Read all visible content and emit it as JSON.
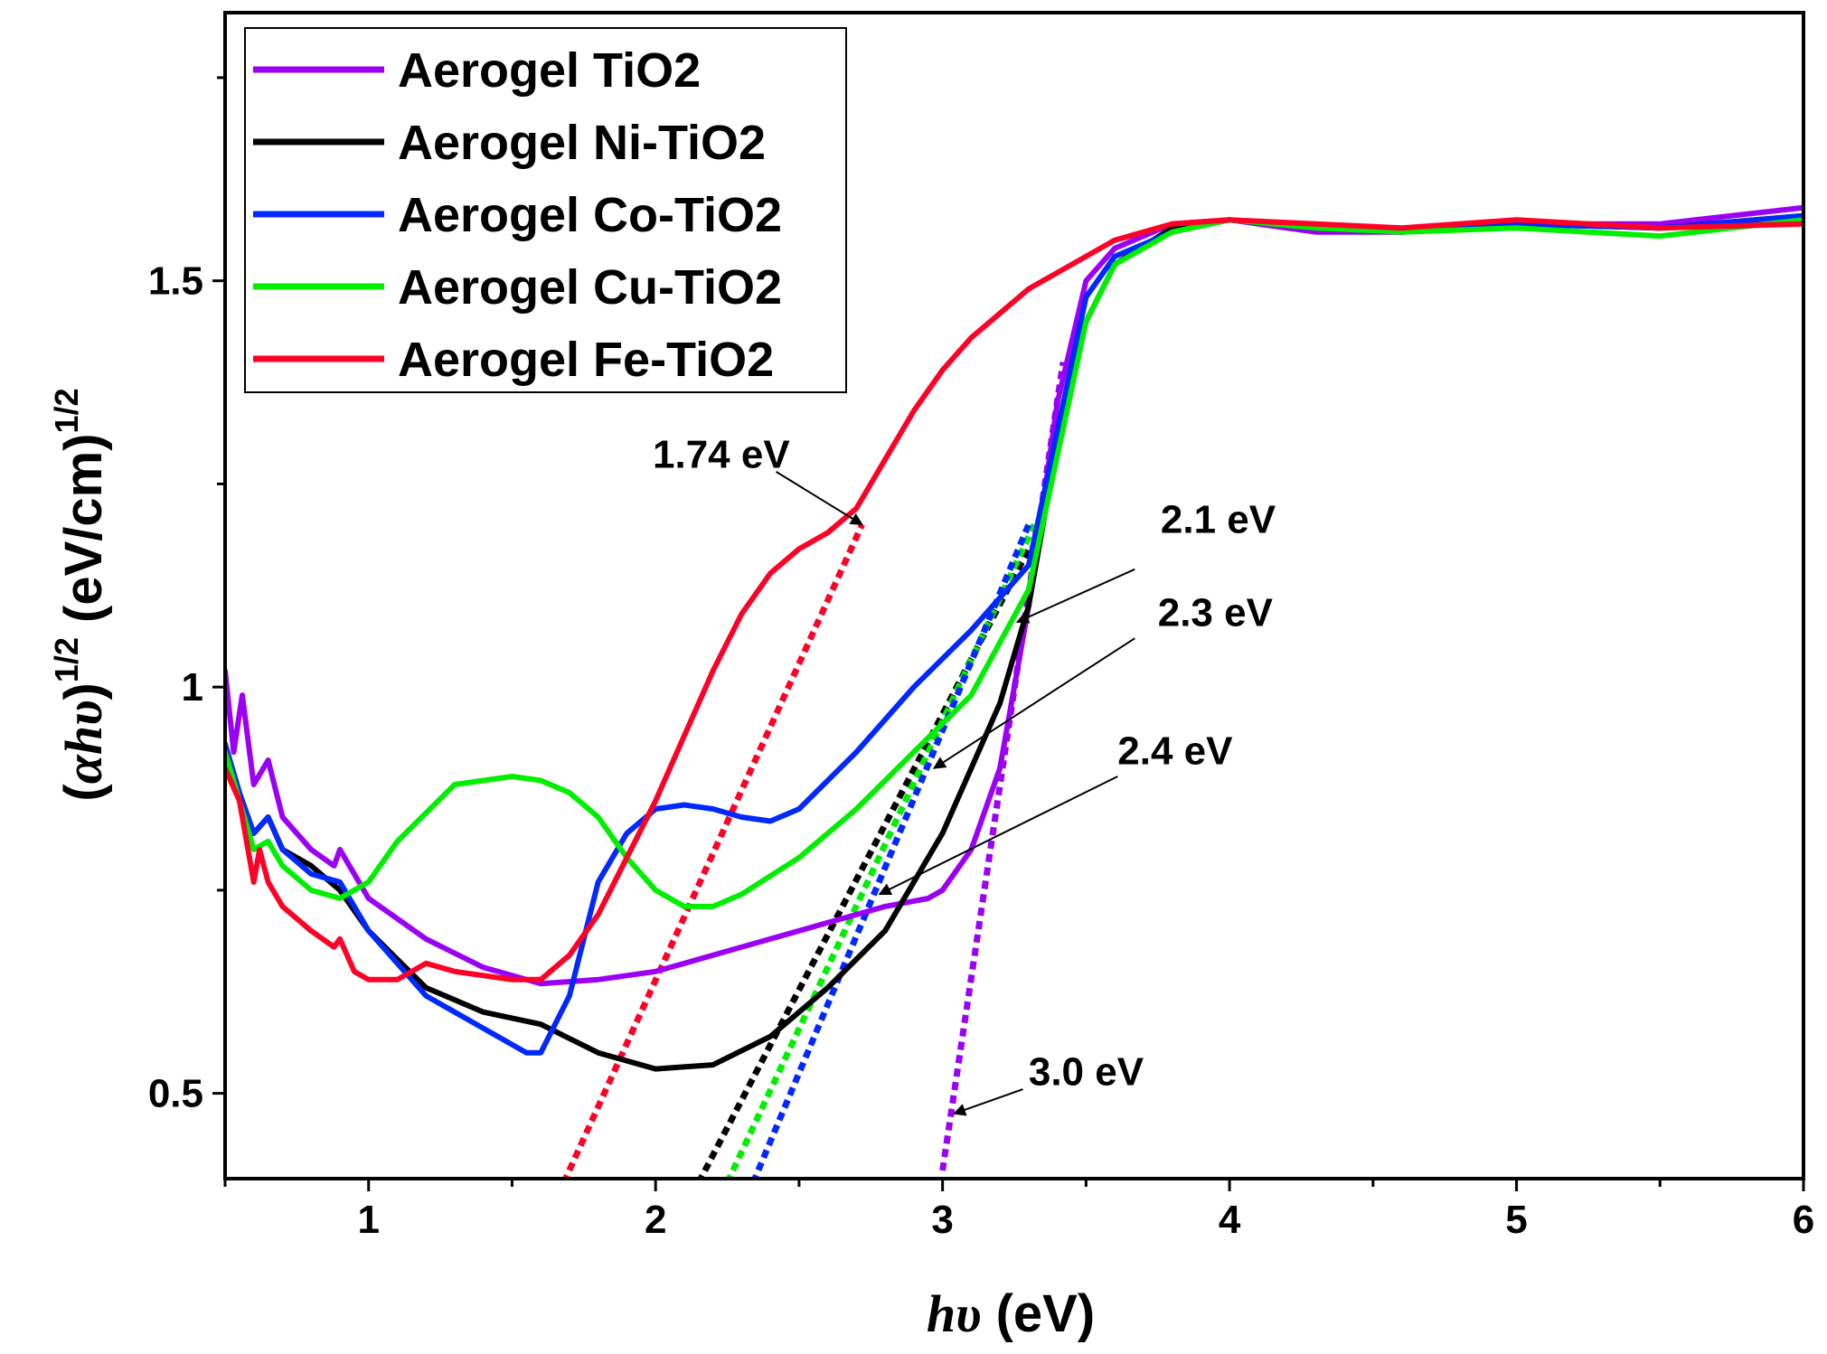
{
  "chart_data": {
    "type": "line",
    "title": "",
    "xlabel": {
      "italic": "hυ",
      "rest": " (eV)"
    },
    "ylabel": {
      "open": "(",
      "italic": "αhυ",
      "close": ")",
      "sup": "1/2",
      "unit": " (eV/cm)",
      "unit_sup": "1/2"
    },
    "xlim": [
      0.5,
      6
    ],
    "ylim": [
      0.395,
      1.83
    ],
    "x_ticks": [
      1,
      2,
      3,
      4,
      5,
      6
    ],
    "x_tick_labels": [
      "1",
      "2",
      "3",
      "4",
      "5",
      "6"
    ],
    "y_ticks": [
      0.5,
      1,
      1.5
    ],
    "y_tick_labels": [
      "0.5",
      "1",
      "1.5"
    ],
    "legend_position": "top-left",
    "series": [
      {
        "name": "Aerogel TiO2",
        "color": "#9b00f5",
        "x": [
          0.5,
          0.53,
          0.56,
          0.6,
          0.65,
          0.7,
          0.8,
          0.88,
          0.9,
          1.0,
          1.2,
          1.4,
          1.6,
          1.8,
          2.0,
          2.2,
          2.4,
          2.6,
          2.8,
          2.95,
          3.0,
          3.1,
          3.2,
          3.3,
          3.4,
          3.5,
          3.6,
          3.8,
          4.0,
          4.3,
          4.6,
          5.0,
          5.5,
          6.0
        ],
        "values": [
          1.02,
          0.92,
          0.99,
          0.88,
          0.91,
          0.84,
          0.8,
          0.78,
          0.8,
          0.74,
          0.69,
          0.655,
          0.635,
          0.64,
          0.65,
          0.67,
          0.69,
          0.71,
          0.73,
          0.74,
          0.75,
          0.8,
          0.9,
          1.1,
          1.35,
          1.5,
          1.54,
          1.57,
          1.575,
          1.56,
          1.56,
          1.57,
          1.57,
          1.59
        ]
      },
      {
        "name": "Aerogel Ni-TiO2",
        "color": "#000000",
        "x": [
          0.5,
          0.55,
          0.6,
          0.65,
          0.7,
          0.8,
          0.9,
          1.0,
          1.2,
          1.4,
          1.6,
          1.8,
          2.0,
          2.2,
          2.4,
          2.6,
          2.8,
          3.0,
          3.2,
          3.3,
          3.4,
          3.5,
          3.6,
          3.8,
          4.0,
          4.3,
          4.6,
          5.0,
          5.5,
          6.0
        ],
        "values": [
          0.93,
          0.86,
          0.82,
          0.84,
          0.8,
          0.78,
          0.75,
          0.7,
          0.63,
          0.6,
          0.585,
          0.55,
          0.53,
          0.535,
          0.57,
          0.63,
          0.7,
          0.82,
          0.98,
          1.1,
          1.3,
          1.45,
          1.52,
          1.565,
          1.575,
          1.565,
          1.56,
          1.57,
          1.565,
          1.58
        ]
      },
      {
        "name": "Aerogel Co-TiO2",
        "color": "#0028ff",
        "x": [
          0.5,
          0.55,
          0.6,
          0.65,
          0.7,
          0.8,
          0.9,
          1.0,
          1.2,
          1.4,
          1.55,
          1.6,
          1.7,
          1.8,
          1.9,
          2.0,
          2.1,
          2.2,
          2.3,
          2.4,
          2.5,
          2.7,
          2.9,
          3.1,
          3.3,
          3.5,
          3.6,
          3.8,
          4.0,
          4.3,
          4.6,
          5.0,
          5.5,
          6.0
        ],
        "values": [
          0.93,
          0.87,
          0.82,
          0.84,
          0.8,
          0.77,
          0.76,
          0.7,
          0.62,
          0.58,
          0.55,
          0.55,
          0.62,
          0.76,
          0.82,
          0.85,
          0.855,
          0.85,
          0.84,
          0.835,
          0.85,
          0.92,
          1.0,
          1.07,
          1.15,
          1.48,
          1.53,
          1.56,
          1.575,
          1.565,
          1.56,
          1.57,
          1.565,
          1.58
        ]
      },
      {
        "name": "Aerogel Cu-TiO2",
        "color": "#00ee00",
        "x": [
          0.5,
          0.55,
          0.6,
          0.65,
          0.7,
          0.8,
          0.9,
          1.0,
          1.1,
          1.3,
          1.5,
          1.6,
          1.7,
          1.8,
          1.9,
          2.0,
          2.1,
          2.2,
          2.3,
          2.5,
          2.7,
          2.9,
          3.1,
          3.3,
          3.5,
          3.6,
          3.8,
          4.0,
          4.3,
          4.6,
          5.0,
          5.5,
          6.0
        ],
        "values": [
          0.92,
          0.86,
          0.8,
          0.81,
          0.78,
          0.75,
          0.74,
          0.76,
          0.81,
          0.88,
          0.89,
          0.885,
          0.87,
          0.84,
          0.79,
          0.75,
          0.73,
          0.73,
          0.745,
          0.79,
          0.85,
          0.92,
          0.99,
          1.12,
          1.45,
          1.52,
          1.56,
          1.575,
          1.565,
          1.56,
          1.565,
          1.555,
          1.575
        ]
      },
      {
        "name": "Aerogel Fe-TiO2",
        "color": "#ff0026",
        "x": [
          0.5,
          0.55,
          0.6,
          0.62,
          0.65,
          0.7,
          0.8,
          0.88,
          0.9,
          0.95,
          1.0,
          1.1,
          1.2,
          1.3,
          1.4,
          1.5,
          1.6,
          1.7,
          1.8,
          1.9,
          2.0,
          2.1,
          2.2,
          2.3,
          2.4,
          2.5,
          2.6,
          2.7,
          2.8,
          2.9,
          3.0,
          3.1,
          3.2,
          3.3,
          3.4,
          3.5,
          3.6,
          3.8,
          4.0,
          4.3,
          4.6,
          5.0,
          5.5,
          6.0
        ],
        "values": [
          0.9,
          0.86,
          0.76,
          0.8,
          0.76,
          0.73,
          0.7,
          0.68,
          0.69,
          0.65,
          0.64,
          0.64,
          0.66,
          0.65,
          0.645,
          0.64,
          0.64,
          0.67,
          0.72,
          0.79,
          0.86,
          0.94,
          1.02,
          1.09,
          1.14,
          1.17,
          1.19,
          1.22,
          1.28,
          1.34,
          1.39,
          1.43,
          1.46,
          1.49,
          1.51,
          1.53,
          1.55,
          1.57,
          1.575,
          1.57,
          1.565,
          1.575,
          1.565,
          1.57
        ]
      }
    ],
    "fit_lines": [
      {
        "color": "#ff0026",
        "x": [
          1.68,
          2.72
        ],
        "values": [
          0.39,
          1.2
        ]
      },
      {
        "color": "#000000",
        "x": [
          2.15,
          3.3
        ],
        "values": [
          0.39,
          1.17
        ]
      },
      {
        "color": "#00ee00",
        "x": [
          2.25,
          3.32
        ],
        "values": [
          0.39,
          1.2
        ]
      },
      {
        "color": "#0028ff",
        "x": [
          2.34,
          3.3
        ],
        "values": [
          0.39,
          1.2
        ]
      },
      {
        "color": "#9b00f5",
        "x": [
          3.0,
          3.42
        ],
        "values": [
          0.405,
          1.4
        ]
      }
    ],
    "annotations": [
      {
        "label": "1.74 eV",
        "text_x": 1.99,
        "text_y": 1.27,
        "arrow_from": [
          2.42,
          1.265
        ],
        "arrow_to": [
          2.72,
          1.2
        ]
      },
      {
        "label": "2.1 eV",
        "text_x": 3.76,
        "text_y": 1.19,
        "arrow_from": [
          3.67,
          1.145
        ],
        "arrow_to": [
          3.26,
          1.08
        ]
      },
      {
        "label": "2.3 eV",
        "text_x": 3.75,
        "text_y": 1.075,
        "arrow_from": [
          3.67,
          1.06
        ],
        "arrow_to": [
          2.97,
          0.9
        ]
      },
      {
        "label": "2.4 eV",
        "text_x": 3.61,
        "text_y": 0.905,
        "arrow_from": [
          3.61,
          0.89
        ],
        "arrow_to": [
          2.78,
          0.745
        ]
      },
      {
        "label": "3.0 eV",
        "text_x": 3.3,
        "text_y": 0.51,
        "arrow_from": [
          3.28,
          0.505
        ],
        "arrow_to": [
          3.04,
          0.475
        ]
      }
    ]
  }
}
